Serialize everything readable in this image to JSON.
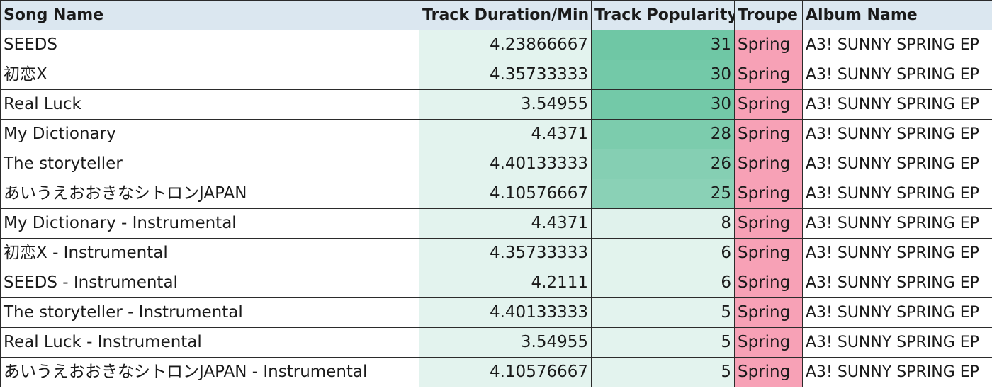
{
  "headers": [
    "Song Name",
    "Track Duration/Min",
    "Track Popularity",
    "Troupe",
    "Album Name"
  ],
  "colors": {
    "header_bg": "#dbe7f0",
    "duration_bg": "#e3f3ee",
    "popularity_scale": [
      "#e3f3ee",
      "#6fc7a5"
    ],
    "troupe_bg": "#f7a1b6",
    "border": "#2b2b2b"
  },
  "popularity_range": [
    5,
    31
  ],
  "rows": [
    {
      "song": "SEEDS",
      "duration": "4.23866667",
      "popularity": "31",
      "troupe": "Spring",
      "album": "A3! SUNNY SPRING EP"
    },
    {
      "song": "初恋X",
      "duration": "4.35733333",
      "popularity": "30",
      "troupe": "Spring",
      "album": "A3! SUNNY SPRING EP"
    },
    {
      "song": "Real Luck",
      "duration": "3.54955",
      "popularity": "30",
      "troupe": "Spring",
      "album": "A3! SUNNY SPRING EP"
    },
    {
      "song": "My Dictionary",
      "duration": "4.4371",
      "popularity": "28",
      "troupe": "Spring",
      "album": "A3! SUNNY SPRING EP"
    },
    {
      "song": "The storyteller",
      "duration": "4.40133333",
      "popularity": "26",
      "troupe": "Spring",
      "album": "A3! SUNNY SPRING EP"
    },
    {
      "song": "あいうえおおきなシトロンJAPAN",
      "duration": "4.10576667",
      "popularity": "25",
      "troupe": "Spring",
      "album": "A3! SUNNY SPRING EP"
    },
    {
      "song": "My Dictionary - Instrumental",
      "duration": "4.4371",
      "popularity": "8",
      "troupe": "Spring",
      "album": "A3! SUNNY SPRING EP"
    },
    {
      "song": "初恋X - Instrumental",
      "duration": "4.35733333",
      "popularity": "6",
      "troupe": "Spring",
      "album": "A3! SUNNY SPRING EP"
    },
    {
      "song": "SEEDS - Instrumental",
      "duration": "4.2111",
      "popularity": "6",
      "troupe": "Spring",
      "album": "A3! SUNNY SPRING EP"
    },
    {
      "song": "The storyteller - Instrumental",
      "duration": "4.40133333",
      "popularity": "5",
      "troupe": "Spring",
      "album": "A3! SUNNY SPRING EP"
    },
    {
      "song": "Real Luck - Instrumental",
      "duration": "3.54955",
      "popularity": "5",
      "troupe": "Spring",
      "album": "A3! SUNNY SPRING EP"
    },
    {
      "song": "あいうえおおきなシトロンJAPAN - Instrumental",
      "duration": "4.10576667",
      "popularity": "5",
      "troupe": "Spring",
      "album": "A3! SUNNY SPRING EP"
    }
  ]
}
